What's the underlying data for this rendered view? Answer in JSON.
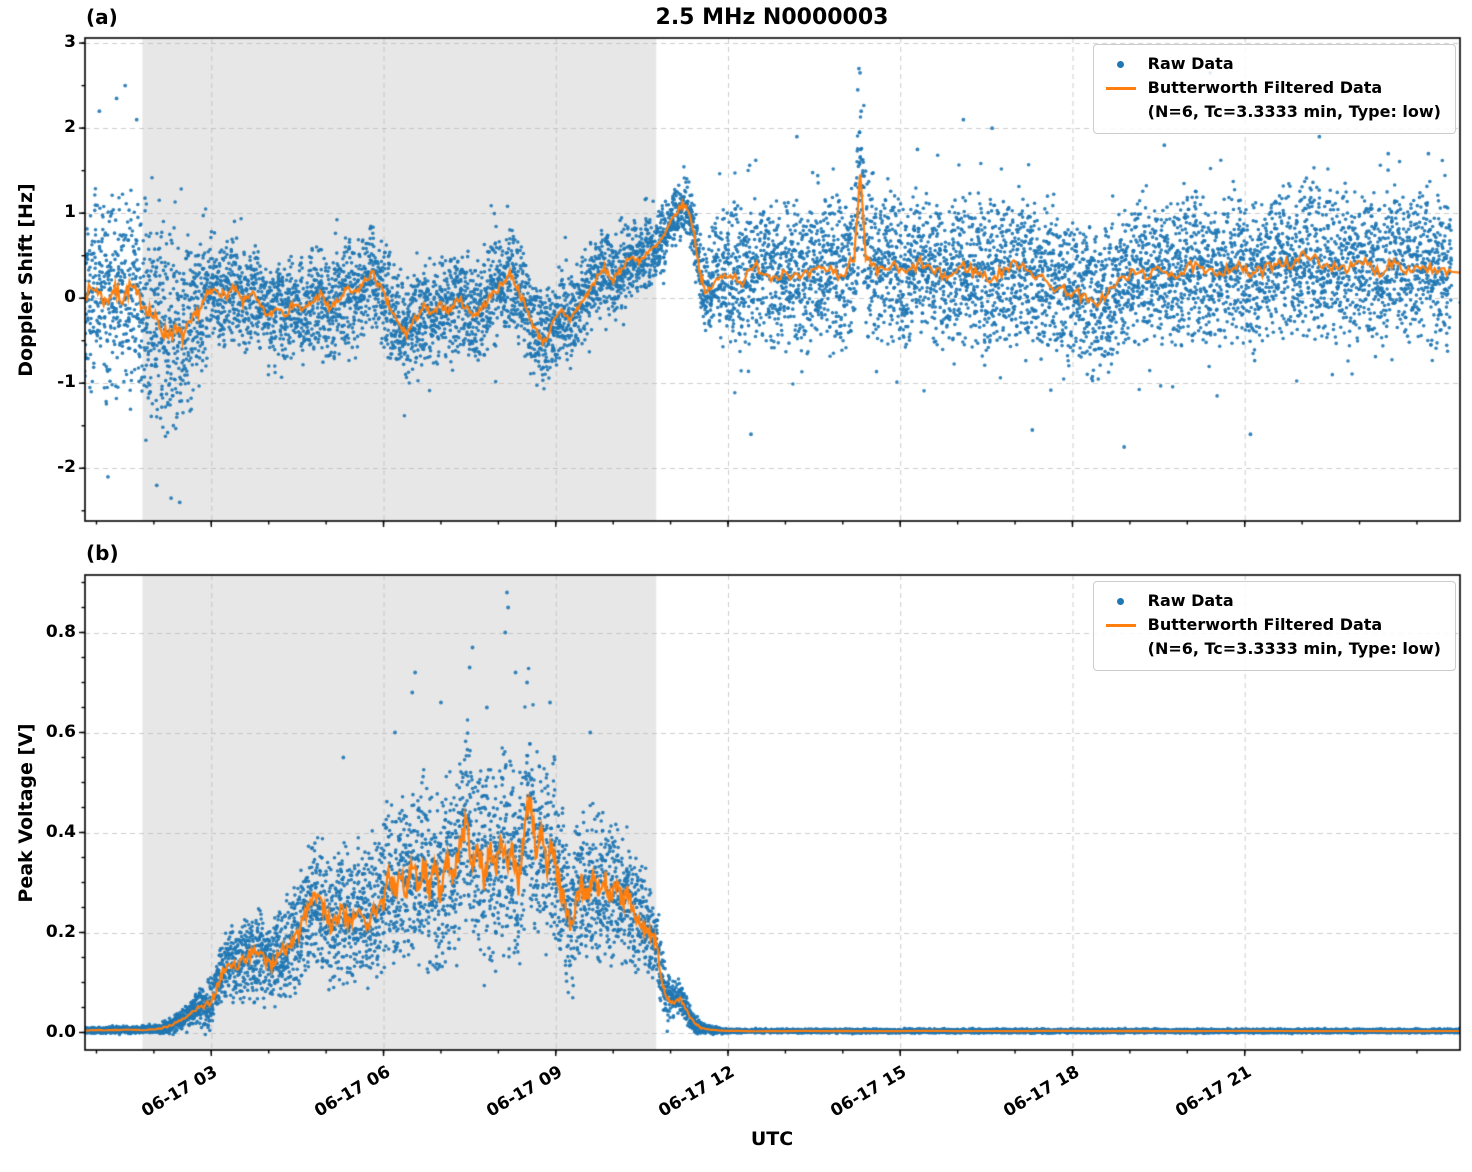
{
  "figure": {
    "title": "2.5 MHz N0000003",
    "xlabel": "UTC",
    "xtick_values": [
      3,
      6,
      9,
      12,
      15,
      18,
      21
    ],
    "xtick_labels": [
      "06-17 03",
      "06-17 06",
      "06-17 09",
      "06-17 12",
      "06-17 15",
      "06-17 18",
      "06-17 21"
    ],
    "legend": {
      "raw": "Raw Data",
      "filtered_line1": "Butterworth Filtered Data",
      "filtered_line2": "(N=6, Tc=3.3333 min, Type: low)"
    },
    "colors": {
      "raw": "#1f77b4",
      "filtered": "#ff7f0e",
      "shade": "#e7e7e7",
      "grid": "#b8b8b8"
    }
  },
  "chart_data": [
    {
      "type": "scatter",
      "panel_label": "(a)",
      "title": "2.5 MHz N0000003",
      "ylabel": "Doppler Shift [Hz]",
      "ylim": [
        -2.62,
        3.06
      ],
      "ytick_values": [
        -2,
        -1,
        0,
        1,
        2,
        3
      ],
      "ytick_labels": [
        "-2",
        "-1",
        "0",
        "1",
        "2",
        "3"
      ],
      "xlim_hours": [
        0.8,
        24.75
      ],
      "shaded_region_hours": [
        1.8,
        10.75
      ],
      "grid": true,
      "legend_position": "upper right",
      "series": [
        {
          "name": "Raw Data",
          "type": "scatter",
          "color": "#1f77b4"
        },
        {
          "name": "Butterworth Filtered Data (N=6, Tc=3.3333 min, Type: low)",
          "type": "line",
          "color": "#ff7f0e"
        }
      ],
      "filtered": {
        "t": [
          0.8,
          1.0,
          1.15,
          1.3,
          1.45,
          1.6,
          1.75,
          1.9,
          2.05,
          2.2,
          2.35,
          2.5,
          2.65,
          2.8,
          2.95,
          3.1,
          3.25,
          3.4,
          3.55,
          3.7,
          3.85,
          4.0,
          4.15,
          4.3,
          4.45,
          4.6,
          4.75,
          4.9,
          5.05,
          5.2,
          5.35,
          5.5,
          5.65,
          5.8,
          5.95,
          6.1,
          6.25,
          6.4,
          6.55,
          6.7,
          6.85,
          7.0,
          7.15,
          7.3,
          7.45,
          7.6,
          7.75,
          7.9,
          8.05,
          8.2,
          8.35,
          8.5,
          8.65,
          8.8,
          8.95,
          9.1,
          9.25,
          9.4,
          9.55,
          9.7,
          9.85,
          10.0,
          10.15,
          10.3,
          10.45,
          10.6,
          10.75,
          10.9,
          11.05,
          11.2,
          11.3,
          11.4,
          11.5,
          11.6,
          11.8,
          12.0,
          12.25,
          12.5,
          12.75,
          13.0,
          13.25,
          13.5,
          13.75,
          14.0,
          14.2,
          14.3,
          14.4,
          14.6,
          14.85,
          15.1,
          15.35,
          15.6,
          15.85,
          16.1,
          16.35,
          16.6,
          16.85,
          17.1,
          17.35,
          17.6,
          17.85,
          18.1,
          18.35,
          18.6,
          18.85,
          19.1,
          19.35,
          19.6,
          19.85,
          20.1,
          20.35,
          20.6,
          20.85,
          21.1,
          21.35,
          21.6,
          21.85,
          22.1,
          22.35,
          22.6,
          22.85,
          23.1,
          23.35,
          23.6,
          23.85,
          24.1,
          24.35,
          24.6,
          24.75
        ],
        "y": [
          0.05,
          0.12,
          -0.05,
          0.1,
          0.0,
          0.14,
          -0.02,
          -0.12,
          -0.28,
          -0.42,
          -0.38,
          -0.45,
          -0.3,
          -0.12,
          0.05,
          0.1,
          0.02,
          0.12,
          -0.05,
          0.08,
          -0.1,
          -0.22,
          -0.1,
          -0.18,
          -0.05,
          -0.15,
          -0.05,
          0.05,
          -0.12,
          -0.05,
          0.1,
          0.05,
          0.18,
          0.3,
          0.12,
          -0.1,
          -0.3,
          -0.42,
          -0.25,
          -0.1,
          -0.2,
          -0.08,
          -0.15,
          0.0,
          -0.12,
          -0.2,
          -0.08,
          0.05,
          0.15,
          0.3,
          0.1,
          -0.15,
          -0.38,
          -0.52,
          -0.3,
          -0.15,
          -0.25,
          -0.1,
          0.05,
          0.22,
          0.35,
          0.2,
          0.35,
          0.5,
          0.42,
          0.55,
          0.6,
          0.75,
          0.95,
          1.1,
          1.05,
          0.8,
          0.35,
          0.05,
          0.2,
          0.3,
          0.2,
          0.38,
          0.25,
          0.32,
          0.22,
          0.3,
          0.35,
          0.25,
          0.5,
          1.5,
          0.45,
          0.3,
          0.38,
          0.28,
          0.42,
          0.3,
          0.25,
          0.38,
          0.3,
          0.22,
          0.35,
          0.42,
          0.28,
          0.15,
          0.1,
          0.05,
          -0.08,
          0.05,
          0.22,
          0.3,
          0.28,
          0.33,
          0.28,
          0.38,
          0.28,
          0.33,
          0.38,
          0.28,
          0.33,
          0.45,
          0.38,
          0.55,
          0.35,
          0.4,
          0.35,
          0.42,
          0.3,
          0.45,
          0.33,
          0.38,
          0.3,
          0.3
        ]
      },
      "scatter_envelope": {
        "t": [
          0.8,
          1.2,
          1.6,
          2.0,
          2.4,
          2.8,
          3.2,
          4.0,
          5.0,
          6.0,
          7.0,
          8.0,
          9.0,
          9.8,
          10.5,
          11.0,
          11.3,
          11.6,
          12.0,
          13.0,
          16.0,
          20.0,
          24.75
        ],
        "spread": [
          1.05,
          1.1,
          1.15,
          1.2,
          1.15,
          0.85,
          0.6,
          0.55,
          0.6,
          0.6,
          0.6,
          0.6,
          0.55,
          0.5,
          0.45,
          0.4,
          0.35,
          0.5,
          0.8,
          0.85,
          0.85,
          0.85,
          0.85
        ]
      },
      "outliers": [
        [
          1.05,
          2.2
        ],
        [
          1.35,
          2.35
        ],
        [
          1.5,
          2.5
        ],
        [
          1.7,
          2.1
        ],
        [
          1.2,
          -2.1
        ],
        [
          2.05,
          -2.2
        ],
        [
          2.3,
          -2.35
        ],
        [
          2.45,
          -2.4
        ],
        [
          14.26,
          2.45
        ],
        [
          14.28,
          2.7
        ],
        [
          14.3,
          2.65
        ],
        [
          14.32,
          2.2
        ],
        [
          14.29,
          1.95
        ],
        [
          14.31,
          1.75
        ],
        [
          16.1,
          2.1
        ],
        [
          16.6,
          2.0
        ],
        [
          20.4,
          2.65
        ],
        [
          13.2,
          1.9
        ],
        [
          15.3,
          1.75
        ],
        [
          22.3,
          1.9
        ],
        [
          23.5,
          1.7
        ],
        [
          18.9,
          -1.75
        ],
        [
          12.4,
          -1.6
        ],
        [
          17.3,
          -1.55
        ],
        [
          21.1,
          -1.6
        ],
        [
          19.6,
          1.8
        ],
        [
          24.2,
          1.7
        ]
      ],
      "line_noise": 0.1,
      "tail_factor": 1.9,
      "clamp_min": null
    },
    {
      "type": "scatter",
      "panel_label": "(b)",
      "ylabel": "Peak Voltage [V]",
      "ylim": [
        -0.035,
        0.915
      ],
      "ytick_values": [
        0.0,
        0.2,
        0.4,
        0.6,
        0.8
      ],
      "ytick_labels": [
        "0.0",
        "0.2",
        "0.4",
        "0.6",
        "0.8"
      ],
      "xlim_hours": [
        0.8,
        24.75
      ],
      "shaded_region_hours": [
        1.8,
        10.75
      ],
      "grid": true,
      "legend_position": "upper right",
      "series": [
        {
          "name": "Raw Data",
          "type": "scatter",
          "color": "#1f77b4"
        },
        {
          "name": "Butterworth Filtered Data (N=6, Tc=3.3333 min, Type: low)",
          "type": "line",
          "color": "#ff7f0e"
        }
      ],
      "filtered": {
        "t": [
          0.8,
          1.2,
          1.6,
          2.0,
          2.2,
          2.4,
          2.6,
          2.8,
          3.0,
          3.1,
          3.2,
          3.3,
          3.45,
          3.6,
          3.75,
          3.9,
          4.05,
          4.2,
          4.35,
          4.5,
          4.65,
          4.8,
          4.95,
          5.1,
          5.25,
          5.4,
          5.55,
          5.7,
          5.85,
          6.0,
          6.1,
          6.2,
          6.3,
          6.4,
          6.5,
          6.6,
          6.7,
          6.8,
          6.9,
          7.0,
          7.1,
          7.2,
          7.3,
          7.45,
          7.55,
          7.65,
          7.75,
          7.85,
          7.95,
          8.05,
          8.15,
          8.25,
          8.35,
          8.45,
          8.55,
          8.65,
          8.75,
          8.85,
          8.95,
          9.05,
          9.15,
          9.25,
          9.35,
          9.45,
          9.55,
          9.65,
          9.75,
          9.85,
          9.95,
          10.05,
          10.15,
          10.25,
          10.35,
          10.45,
          10.55,
          10.65,
          10.75,
          10.85,
          10.95,
          11.05,
          11.15,
          11.25,
          11.35,
          11.45,
          11.55,
          11.7,
          12.0,
          13.0,
          15.0,
          18.0,
          21.0,
          24.75
        ],
        "y": [
          0.004,
          0.005,
          0.005,
          0.006,
          0.01,
          0.02,
          0.035,
          0.05,
          0.06,
          0.09,
          0.12,
          0.14,
          0.13,
          0.15,
          0.16,
          0.15,
          0.13,
          0.16,
          0.17,
          0.19,
          0.24,
          0.27,
          0.25,
          0.21,
          0.24,
          0.22,
          0.25,
          0.22,
          0.24,
          0.26,
          0.32,
          0.27,
          0.33,
          0.28,
          0.35,
          0.3,
          0.34,
          0.28,
          0.33,
          0.27,
          0.35,
          0.3,
          0.36,
          0.43,
          0.33,
          0.38,
          0.3,
          0.36,
          0.32,
          0.38,
          0.33,
          0.36,
          0.3,
          0.4,
          0.47,
          0.36,
          0.4,
          0.33,
          0.38,
          0.3,
          0.26,
          0.22,
          0.26,
          0.3,
          0.27,
          0.31,
          0.28,
          0.31,
          0.27,
          0.3,
          0.26,
          0.28,
          0.24,
          0.22,
          0.21,
          0.2,
          0.18,
          0.1,
          0.07,
          0.06,
          0.07,
          0.05,
          0.03,
          0.015,
          0.008,
          0.005,
          0.003,
          0.003,
          0.003,
          0.003,
          0.003,
          0.003
        ]
      },
      "scatter_envelope": {
        "t": [
          0.8,
          2.0,
          2.5,
          3.0,
          3.5,
          4.0,
          4.5,
          5.0,
          5.5,
          6.0,
          6.5,
          7.0,
          7.5,
          8.0,
          8.5,
          9.0,
          9.5,
          10.0,
          10.5,
          10.8,
          11.0,
          11.3,
          11.6,
          12.0,
          24.75
        ],
        "spread": [
          0.006,
          0.008,
          0.02,
          0.05,
          0.08,
          0.09,
          0.11,
          0.13,
          0.13,
          0.16,
          0.18,
          0.19,
          0.2,
          0.2,
          0.2,
          0.17,
          0.15,
          0.14,
          0.12,
          0.07,
          0.04,
          0.025,
          0.01,
          0.004,
          0.004
        ]
      },
      "outliers": [
        [
          5.3,
          0.55
        ],
        [
          6.2,
          0.6
        ],
        [
          6.5,
          0.68
        ],
        [
          6.55,
          0.72
        ],
        [
          7.0,
          0.66
        ],
        [
          7.5,
          0.73
        ],
        [
          7.55,
          0.77
        ],
        [
          7.8,
          0.65
        ],
        [
          8.12,
          0.8
        ],
        [
          8.15,
          0.88
        ],
        [
          8.17,
          0.85
        ],
        [
          8.3,
          0.72
        ],
        [
          8.5,
          0.7
        ],
        [
          8.9,
          0.66
        ],
        [
          9.6,
          0.6
        ]
      ],
      "line_noise": 0.028,
      "tail_factor": 1.5,
      "clamp_min": -0.004
    }
  ]
}
